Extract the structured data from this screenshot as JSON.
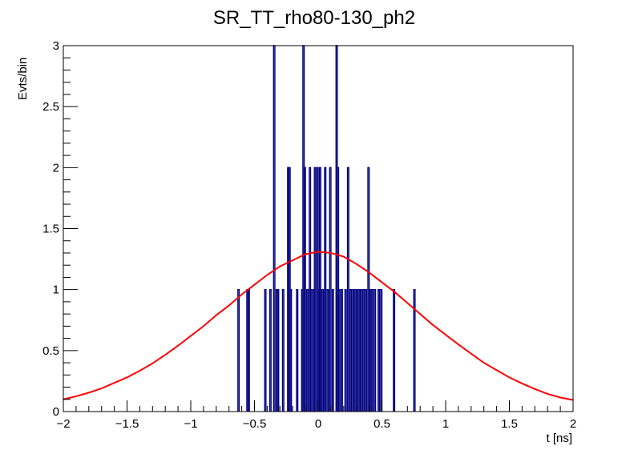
{
  "chart_data": {
    "type": "histogram",
    "title": "SR_TT_rho80-130_ph2",
    "xlabel": "t [ns]",
    "ylabel": "Evts/bin",
    "xlim": [
      -2,
      2
    ],
    "ylim": [
      0,
      3
    ],
    "x_ticks": [
      {
        "value": -2,
        "label": "−2"
      },
      {
        "value": -1.5,
        "label": "−1.5"
      },
      {
        "value": -1,
        "label": "−1"
      },
      {
        "value": -0.5,
        "label": "−0.5"
      },
      {
        "value": 0,
        "label": "0"
      },
      {
        "value": 0.5,
        "label": "0.5"
      },
      {
        "value": 1,
        "label": "1"
      },
      {
        "value": 1.5,
        "label": "1.5"
      },
      {
        "value": 2,
        "label": "2"
      }
    ],
    "y_ticks": [
      {
        "value": 0,
        "label": "0"
      },
      {
        "value": 0.5,
        "label": "0.5"
      },
      {
        "value": 1,
        "label": "1"
      },
      {
        "value": 1.5,
        "label": "1.5"
      },
      {
        "value": 2,
        "label": "2"
      },
      {
        "value": 2.5,
        "label": "2.5"
      },
      {
        "value": 3,
        "label": "3"
      }
    ],
    "bin_width": 0.01,
    "histogram": {
      "color": "#000080",
      "bins": [
        {
          "x": -0.63,
          "y": 1
        },
        {
          "x": -0.56,
          "y": 1
        },
        {
          "x": -0.55,
          "y": 1
        },
        {
          "x": -0.42,
          "y": 1
        },
        {
          "x": -0.38,
          "y": 1
        },
        {
          "x": -0.35,
          "y": 3
        },
        {
          "x": -0.33,
          "y": 1
        },
        {
          "x": -0.32,
          "y": 1
        },
        {
          "x": -0.28,
          "y": 1
        },
        {
          "x": -0.24,
          "y": 2
        },
        {
          "x": -0.23,
          "y": 2
        },
        {
          "x": -0.22,
          "y": 1
        },
        {
          "x": -0.17,
          "y": 1
        },
        {
          "x": -0.13,
          "y": 1
        },
        {
          "x": -0.12,
          "y": 3
        },
        {
          "x": -0.11,
          "y": 2
        },
        {
          "x": -0.09,
          "y": 1
        },
        {
          "x": -0.07,
          "y": 2
        },
        {
          "x": -0.06,
          "y": 1
        },
        {
          "x": -0.04,
          "y": 1
        },
        {
          "x": -0.03,
          "y": 2
        },
        {
          "x": -0.01,
          "y": 2
        },
        {
          "x": 0.0,
          "y": 1
        },
        {
          "x": 0.01,
          "y": 2
        },
        {
          "x": 0.02,
          "y": 1
        },
        {
          "x": 0.04,
          "y": 1
        },
        {
          "x": 0.05,
          "y": 2
        },
        {
          "x": 0.07,
          "y": 1
        },
        {
          "x": 0.09,
          "y": 2
        },
        {
          "x": 0.11,
          "y": 1
        },
        {
          "x": 0.14,
          "y": 3
        },
        {
          "x": 0.15,
          "y": 2
        },
        {
          "x": 0.16,
          "y": 1
        },
        {
          "x": 0.18,
          "y": 1
        },
        {
          "x": 0.21,
          "y": 1
        },
        {
          "x": 0.23,
          "y": 2
        },
        {
          "x": 0.25,
          "y": 1
        },
        {
          "x": 0.27,
          "y": 1
        },
        {
          "x": 0.28,
          "y": 1
        },
        {
          "x": 0.3,
          "y": 1
        },
        {
          "x": 0.32,
          "y": 1
        },
        {
          "x": 0.33,
          "y": 1
        },
        {
          "x": 0.35,
          "y": 1
        },
        {
          "x": 0.37,
          "y": 1
        },
        {
          "x": 0.39,
          "y": 2
        },
        {
          "x": 0.4,
          "y": 1
        },
        {
          "x": 0.42,
          "y": 1
        },
        {
          "x": 0.44,
          "y": 1
        },
        {
          "x": 0.47,
          "y": 1
        },
        {
          "x": 0.49,
          "y": 1
        },
        {
          "x": 0.59,
          "y": 1
        },
        {
          "x": 0.75,
          "y": 1
        }
      ]
    },
    "fit": {
      "type": "gaussian",
      "color": "#ff0000",
      "x": [
        -2.0,
        -1.9,
        -1.8,
        -1.7,
        -1.6,
        -1.5,
        -1.4,
        -1.3,
        -1.2,
        -1.1,
        -1.0,
        -0.9,
        -0.8,
        -0.7,
        -0.6,
        -0.5,
        -0.4,
        -0.3,
        -0.2,
        -0.1,
        0.0,
        0.1,
        0.2,
        0.3,
        0.4,
        0.5,
        0.6,
        0.7,
        0.8,
        0.9,
        1.0,
        1.1,
        1.2,
        1.3,
        1.4,
        1.5,
        1.6,
        1.7,
        1.8,
        1.9,
        2.0
      ],
      "y": [
        0.1,
        0.125,
        0.155,
        0.19,
        0.235,
        0.28,
        0.335,
        0.395,
        0.465,
        0.54,
        0.62,
        0.7,
        0.79,
        0.87,
        0.96,
        1.04,
        1.12,
        1.19,
        1.24,
        1.29,
        1.31,
        1.3,
        1.27,
        1.21,
        1.14,
        1.06,
        0.98,
        0.89,
        0.8,
        0.71,
        0.63,
        0.55,
        0.475,
        0.4,
        0.34,
        0.28,
        0.23,
        0.185,
        0.145,
        0.115,
        0.095
      ]
    }
  }
}
